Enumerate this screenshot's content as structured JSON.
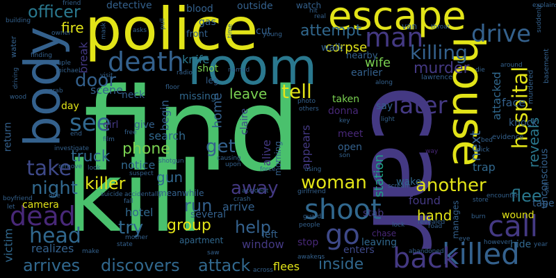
{
  "palette": {
    "green": "#4ac16d",
    "yellow": "#e2e418",
    "teal": "#2a788e",
    "blue": "#34618d",
    "purple": "#482878",
    "violet": "#443983",
    "aqua": "#1fa187",
    "mint": "#7ad151",
    "indigo": "#3e4989",
    "slate": "#31688e"
  },
  "words": [
    {
      "text": "find",
      "color": "green"
    },
    {
      "text": "kill",
      "color": "green"
    },
    {
      "text": "car",
      "color": "violet"
    },
    {
      "text": "police",
      "color": "yellow"
    },
    {
      "text": "room",
      "color": "teal"
    },
    {
      "text": "body",
      "color": "blue"
    },
    {
      "text": "house",
      "color": "yellow"
    },
    {
      "text": "escape",
      "color": "yellow"
    },
    {
      "text": "killed",
      "color": "blue"
    },
    {
      "text": "death",
      "color": "blue"
    },
    {
      "text": "shoot",
      "color": "slate"
    },
    {
      "text": "dead",
      "color": "purple"
    },
    {
      "text": "call",
      "color": "violet"
    },
    {
      "text": "go",
      "color": "indigo"
    },
    {
      "text": "back",
      "color": "violet"
    },
    {
      "text": "man",
      "color": "violet"
    },
    {
      "text": "drive",
      "color": "blue"
    },
    {
      "text": "later",
      "color": "violet"
    },
    {
      "text": "see",
      "color": "slate"
    },
    {
      "text": "take",
      "color": "indigo"
    },
    {
      "text": "head",
      "color": "slate"
    },
    {
      "text": "hospital",
      "color": "yellow"
    },
    {
      "text": "killing",
      "color": "blue"
    },
    {
      "text": "murder",
      "color": "violet"
    },
    {
      "text": "attempt",
      "color": "slate"
    },
    {
      "text": "officer",
      "color": "teal"
    },
    {
      "text": "fire",
      "color": "yellow"
    },
    {
      "text": "tell",
      "color": "yellow"
    },
    {
      "text": "door",
      "color": "blue"
    },
    {
      "text": "truck",
      "color": "slate"
    },
    {
      "text": "night",
      "color": "slate"
    },
    {
      "text": "killer",
      "color": "yellow"
    },
    {
      "text": "gun",
      "color": "slate"
    },
    {
      "text": "phone",
      "color": "mint"
    },
    {
      "text": "get",
      "color": "blue"
    },
    {
      "text": "woman",
      "color": "yellow"
    },
    {
      "text": "away",
      "color": "violet"
    },
    {
      "text": "run",
      "color": "blue"
    },
    {
      "text": "try",
      "color": "slate"
    },
    {
      "text": "group",
      "color": "yellow"
    },
    {
      "text": "help",
      "color": "blue"
    },
    {
      "text": "another",
      "color": "yellow"
    },
    {
      "text": "hand",
      "color": "yellow"
    },
    {
      "text": "inside",
      "color": "slate"
    },
    {
      "text": "arrives",
      "color": "slate"
    },
    {
      "text": "discovers",
      "color": "slate"
    },
    {
      "text": "attack",
      "color": "slate"
    },
    {
      "text": "flee",
      "color": "teal"
    },
    {
      "text": "reveals",
      "color": "teal"
    },
    {
      "text": "next",
      "color": "blue"
    },
    {
      "text": "station",
      "color": "aqua"
    },
    {
      "text": "appears",
      "color": "violet"
    },
    {
      "text": "alive",
      "color": "violet"
    },
    {
      "text": "home",
      "color": "blue"
    },
    {
      "text": "begin",
      "color": "blue"
    },
    {
      "text": "leave",
      "color": "mint"
    },
    {
      "text": "scene",
      "color": "blue"
    },
    {
      "text": "corpse",
      "color": "yellow"
    },
    {
      "text": "wife",
      "color": "mint"
    },
    {
      "text": "walk",
      "color": "blue"
    },
    {
      "text": "earlier",
      "color": "blue"
    },
    {
      "text": "knife",
      "color": "teal"
    },
    {
      "text": "shot",
      "color": "mint"
    },
    {
      "text": "missing",
      "color": "slate"
    },
    {
      "text": "search",
      "color": "slate"
    },
    {
      "text": "notice",
      "color": "slate"
    },
    {
      "text": "hotel",
      "color": "slate"
    },
    {
      "text": "camera",
      "color": "yellow"
    },
    {
      "text": "victim",
      "color": "slate"
    },
    {
      "text": "realizes",
      "color": "blue"
    },
    {
      "text": "window",
      "color": "violet"
    },
    {
      "text": "flees",
      "color": "yellow"
    },
    {
      "text": "arrive",
      "color": "blue"
    },
    {
      "text": "several",
      "color": "blue"
    },
    {
      "text": "meanwhile",
      "color": "blue"
    },
    {
      "text": "apartment",
      "color": "slate"
    },
    {
      "text": "stop",
      "color": "purple"
    },
    {
      "text": "leaving",
      "color": "slate"
    },
    {
      "text": "enters",
      "color": "indigo"
    },
    {
      "text": "chase",
      "color": "purple"
    },
    {
      "text": "found",
      "color": "violet"
    },
    {
      "text": "stab",
      "color": "violet"
    },
    {
      "text": "wake",
      "color": "slate"
    },
    {
      "text": "trap",
      "color": "slate"
    },
    {
      "text": "wound",
      "color": "yellow"
    },
    {
      "text": "tape",
      "color": "blue"
    },
    {
      "text": "hide",
      "color": "slate"
    },
    {
      "text": "face",
      "color": "blue"
    },
    {
      "text": "knock",
      "color": "blue"
    },
    {
      "text": "attacked",
      "color": "slate"
    },
    {
      "text": "unconscious",
      "color": "blue"
    },
    {
      "text": "return",
      "color": "blue"
    },
    {
      "text": "day",
      "color": "yellow"
    },
    {
      "text": "girl",
      "color": "violet"
    },
    {
      "text": "give",
      "color": "blue"
    },
    {
      "text": "leg",
      "color": "blue"
    },
    {
      "text": "neck",
      "color": "blue"
    },
    {
      "text": "break",
      "color": "violet"
    },
    {
      "text": "detective",
      "color": "blue"
    },
    {
      "text": "blood",
      "color": "blue"
    },
    {
      "text": "outside",
      "color": "blue"
    },
    {
      "text": "watch",
      "color": "blue"
    },
    {
      "text": "front",
      "color": "blue"
    },
    {
      "text": "gas",
      "color": "blue"
    },
    {
      "text": "cut",
      "color": "blue"
    },
    {
      "text": "nearby",
      "color": "blue"
    },
    {
      "text": "water",
      "color": "blue"
    },
    {
      "text": "taken",
      "color": "mint"
    },
    {
      "text": "say",
      "color": "blue"
    },
    {
      "text": "open",
      "color": "blue"
    },
    {
      "text": "meet",
      "color": "purple"
    },
    {
      "text": "donna",
      "color": "purple"
    },
    {
      "text": "claire",
      "color": "indigo"
    },
    {
      "text": "morning",
      "color": "blue"
    },
    {
      "text": "left",
      "color": "blue"
    },
    {
      "text": "manages",
      "color": "blue"
    },
    {
      "text": "lawrence",
      "color": "blue"
    },
    {
      "text": "evidence",
      "color": "blue"
    },
    {
      "text": "murdered",
      "color": "blue"
    },
    {
      "text": "basement",
      "color": "blue"
    },
    {
      "text": "suddenly",
      "color": "blue"
    },
    {
      "text": "explains",
      "color": "blue"
    },
    {
      "text": "around",
      "color": "blue"
    },
    {
      "text": "die",
      "color": "blue"
    },
    {
      "text": "bed",
      "color": "blue"
    },
    {
      "text": "pick",
      "color": "blue"
    },
    {
      "text": "burn",
      "color": "blue"
    },
    {
      "text": "store",
      "color": "blue"
    },
    {
      "text": "light",
      "color": "blue"
    },
    {
      "text": "key",
      "color": "blue"
    },
    {
      "text": "people",
      "color": "blue"
    },
    {
      "text": "lock",
      "color": "blue"
    },
    {
      "text": "guard",
      "color": "blue"
    },
    {
      "text": "way",
      "color": "purple"
    },
    {
      "text": "son",
      "color": "blue"
    },
    {
      "text": "encounter",
      "color": "blue"
    },
    {
      "text": "however",
      "color": "blue"
    },
    {
      "text": "year",
      "color": "blue"
    },
    {
      "text": "still",
      "color": "blue"
    },
    {
      "text": "road",
      "color": "blue"
    },
    {
      "text": "eye",
      "color": "blue"
    },
    {
      "text": "revealed",
      "color": "blue"
    },
    {
      "text": "abandoned",
      "color": "blue"
    },
    {
      "text": "awakens",
      "color": "blue"
    },
    {
      "text": "across",
      "color": "blue"
    },
    {
      "text": "saw",
      "color": "blue"
    },
    {
      "text": "scream",
      "color": "blue"
    },
    {
      "text": "girlfriend",
      "color": "blue"
    },
    {
      "text": "using",
      "color": "blue"
    },
    {
      "text": "force",
      "color": "blue"
    },
    {
      "text": "others",
      "color": "blue"
    },
    {
      "text": "photo",
      "color": "blue"
    },
    {
      "text": "along",
      "color": "blue"
    },
    {
      "text": "accident",
      "color": "blue"
    },
    {
      "text": "crash",
      "color": "blue"
    },
    {
      "text": "causing",
      "color": "blue"
    },
    {
      "text": "upon",
      "color": "blue"
    },
    {
      "text": "named",
      "color": "blue"
    },
    {
      "text": "young",
      "color": "blue"
    },
    {
      "text": "real",
      "color": "blue"
    },
    {
      "text": "hit",
      "color": "blue"
    },
    {
      "text": "throat",
      "color": "blue"
    },
    {
      "text": "van",
      "color": "blue"
    },
    {
      "text": "friend",
      "color": "blue"
    },
    {
      "text": "building",
      "color": "blue"
    },
    {
      "text": "owner",
      "color": "blue"
    },
    {
      "text": "mask",
      "color": "blue"
    },
    {
      "text": "asks",
      "color": "blue"
    },
    {
      "text": "pull",
      "color": "blue"
    },
    {
      "text": "time",
      "color": "blue"
    },
    {
      "text": "finding",
      "color": "blue"
    },
    {
      "text": "couple",
      "color": "blue"
    },
    {
      "text": "michael",
      "color": "blue"
    },
    {
      "text": "visit",
      "color": "blue"
    },
    {
      "text": "radio",
      "color": "blue"
    },
    {
      "text": "floor",
      "color": "blue"
    },
    {
      "text": "driving",
      "color": "blue"
    },
    {
      "text": "wood",
      "color": "blue"
    },
    {
      "text": "grab",
      "color": "blue"
    },
    {
      "text": "end",
      "color": "blue"
    },
    {
      "text": "film",
      "color": "blue"
    },
    {
      "text": "free",
      "color": "blue"
    },
    {
      "text": "investigate",
      "color": "blue"
    },
    {
      "text": "remove",
      "color": "blue"
    },
    {
      "text": "look",
      "color": "blue"
    },
    {
      "text": "suspect",
      "color": "blue"
    },
    {
      "text": "shotgun",
      "color": "blue"
    },
    {
      "text": "suicide",
      "color": "blue"
    },
    {
      "text": "accidentally",
      "color": "blue"
    },
    {
      "text": "fall",
      "color": "blue"
    },
    {
      "text": "mother",
      "color": "blue"
    },
    {
      "text": "state",
      "color": "blue"
    },
    {
      "text": "make",
      "color": "blue"
    },
    {
      "text": "let",
      "color": "blue"
    },
    {
      "text": "one",
      "color": "blue"
    },
    {
      "text": "boyfriend",
      "color": "blue"
    }
  ]
}
